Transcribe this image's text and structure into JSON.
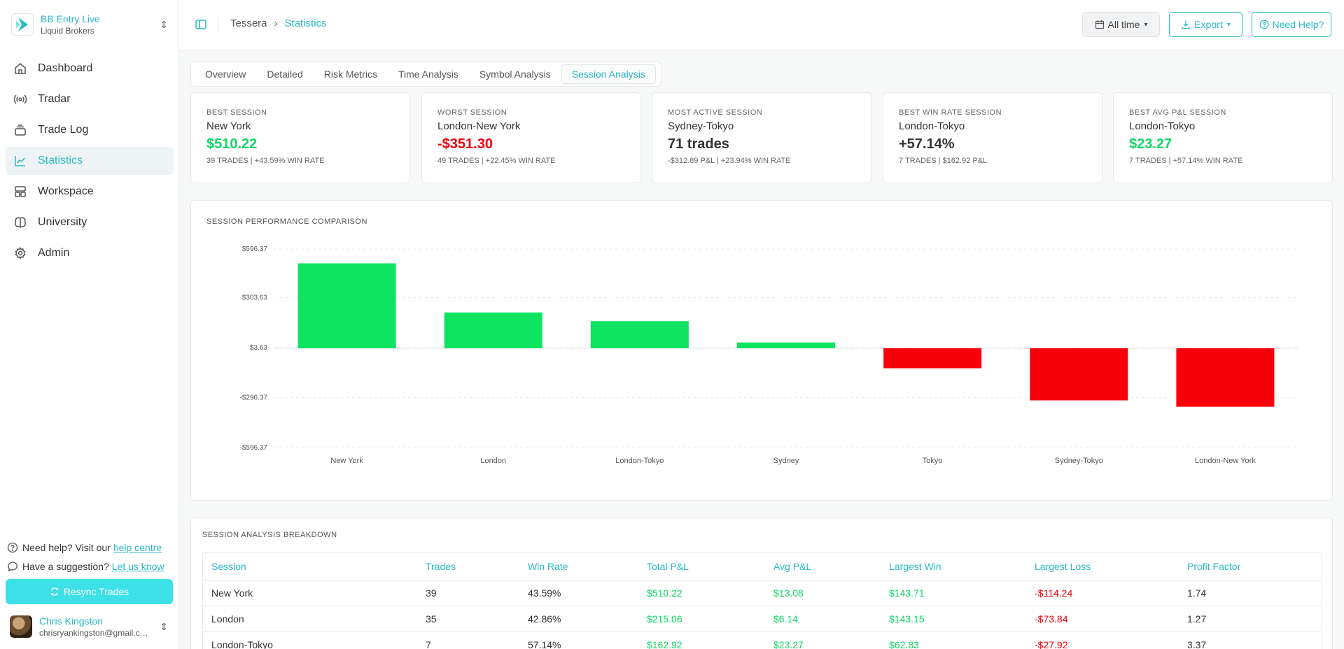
{
  "account": {
    "name": "BB Entry Live",
    "broker": "Liquid Brokers"
  },
  "nav": [
    {
      "label": "Dashboard",
      "icon": "home-icon"
    },
    {
      "label": "Tradar",
      "icon": "radar-icon"
    },
    {
      "label": "Trade Log",
      "icon": "stack-icon"
    },
    {
      "label": "Statistics",
      "icon": "chart-line-icon"
    },
    {
      "label": "Workspace",
      "icon": "layout-icon"
    },
    {
      "label": "University",
      "icon": "brain-icon"
    },
    {
      "label": "Admin",
      "icon": "gear-icon"
    }
  ],
  "sidebar_footer": {
    "help_text": "Need help? Visit our",
    "help_link": "help centre",
    "suggest_text": "Have a suggestion?",
    "suggest_link": "Let us know",
    "resync_label": "Resync Trades"
  },
  "user": {
    "name": "Chris Kingston",
    "email": "chrisryankingston@gmail.com"
  },
  "header": {
    "breadcrumb": [
      "Tessera",
      "Statistics"
    ],
    "time_filter": "All time",
    "export_label": "Export",
    "help_label": "Need Help?"
  },
  "tabs": [
    "Overview",
    "Detailed",
    "Risk Metrics",
    "Time Analysis",
    "Symbol Analysis",
    "Session Analysis"
  ],
  "active_tab": "Session Analysis",
  "cards": [
    {
      "label": "Best Session",
      "name": "New York",
      "value": "$510.22",
      "sub": "39 trades | +43.59% win rate",
      "tone": "pos"
    },
    {
      "label": "Worst Session",
      "name": "London-New York",
      "value": "-$351.30",
      "sub": "49 trades | +22.45% win rate",
      "tone": "neg"
    },
    {
      "label": "Most Active Session",
      "name": "Sydney-Tokyo",
      "value": "71 trades",
      "sub": "-$312.89 P&L | +23.94% win rate",
      "tone": "neu"
    },
    {
      "label": "Best Win Rate Session",
      "name": "London-Tokyo",
      "value": "+57.14%",
      "sub": "7 trades | $162.92 P&L",
      "tone": "neu"
    },
    {
      "label": "Best Avg P&L Session",
      "name": "London-Tokyo",
      "value": "$23.27",
      "sub": "7 trades | +57.14% win rate",
      "tone": "pos"
    }
  ],
  "chart_title": "Session Performance Comparison",
  "chart_data": {
    "type": "bar",
    "categories": [
      "New York",
      "London",
      "London-Tokyo",
      "Sydney",
      "Tokyo",
      "Sydney-Tokyo",
      "London-New York"
    ],
    "values": [
      510.22,
      215.06,
      162.92,
      35.0,
      -120.0,
      -312.89,
      -351.3
    ],
    "ytick_labels": [
      "$596.37",
      "$303.63",
      "$3.63",
      "-$296.37",
      "-$596.37"
    ],
    "ytick_values": [
      596.37,
      303.63,
      3.63,
      -296.37,
      -596.37
    ],
    "ylim": [
      -596.37,
      596.37
    ],
    "colors": {
      "positive": "#0ee462",
      "negative": "#f7000b"
    },
    "grid": true
  },
  "table": {
    "title": "Session Analysis Breakdown",
    "columns": [
      "Session",
      "Trades",
      "Win Rate",
      "Total P&L",
      "Avg P&L",
      "Largest Win",
      "Largest Loss",
      "Profit Factor"
    ],
    "rows": [
      [
        "New York",
        "39",
        "43.59%",
        "$510.22",
        "$13.08",
        "$143.71",
        "-$114.24",
        "1.74"
      ],
      [
        "London",
        "35",
        "42.86%",
        "$215.06",
        "$6.14",
        "$143.15",
        "-$73.84",
        "1.27"
      ],
      [
        "London-Tokyo",
        "7",
        "57.14%",
        "$162.92",
        "$23.27",
        "$62.83",
        "-$27.92",
        "3.37"
      ]
    ]
  }
}
